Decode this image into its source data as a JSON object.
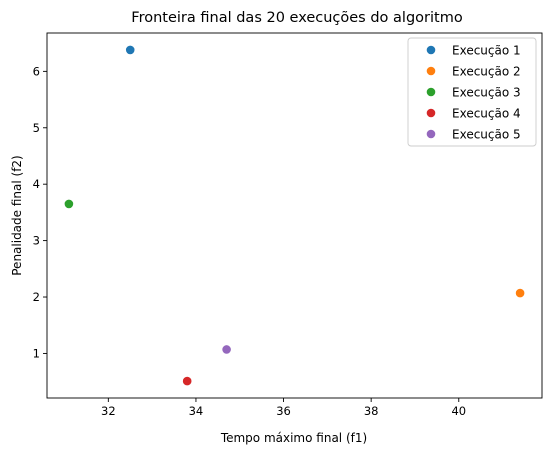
{
  "chart_data": {
    "type": "scatter",
    "title": "Fronteira final das 20 execuções do algoritmo",
    "xlabel": "Tempo máximo final (f1)",
    "ylabel": "Penalidade final (f2)",
    "xlim": [
      30.6,
      41.9
    ],
    "ylim": [
      0.21,
      6.68
    ],
    "xticks": [
      "32",
      "34",
      "36",
      "38",
      "40"
    ],
    "yticks": [
      "1",
      "2",
      "3",
      "4",
      "5",
      "6"
    ],
    "grid": false,
    "legend_position": "top-right",
    "series": [
      {
        "name": "Execução 1",
        "color": "#1f77b4",
        "x": [
          32.5
        ],
        "y": [
          6.38
        ]
      },
      {
        "name": "Execução 2",
        "color": "#ff7f0e",
        "x": [
          41.4
        ],
        "y": [
          2.07
        ]
      },
      {
        "name": "Execução 3",
        "color": "#2ca02c",
        "x": [
          31.1
        ],
        "y": [
          3.65
        ]
      },
      {
        "name": "Execução 4",
        "color": "#d62728",
        "x": [
          33.8
        ],
        "y": [
          0.51
        ]
      },
      {
        "name": "Execução 5",
        "color": "#9467bd",
        "x": [
          34.7
        ],
        "y": [
          1.07
        ]
      }
    ]
  }
}
